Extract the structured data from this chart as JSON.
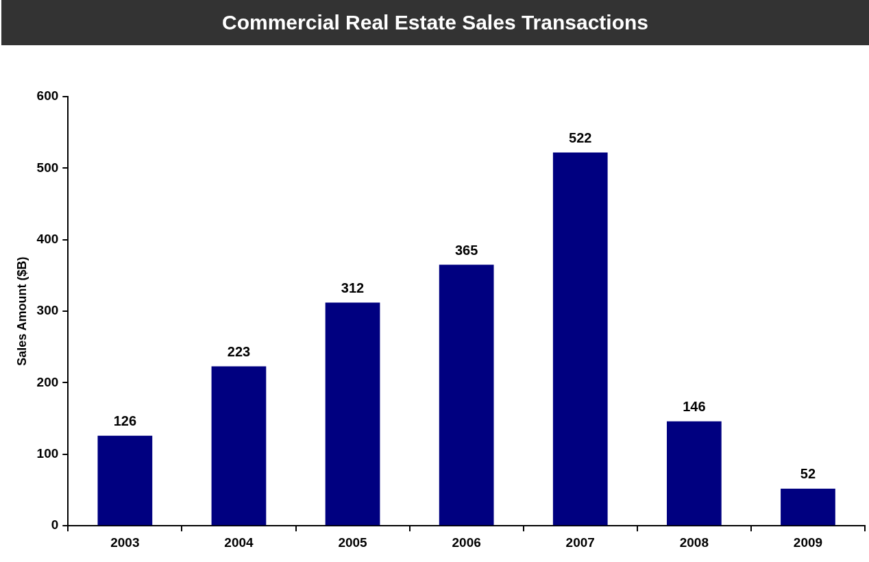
{
  "chart_data": {
    "type": "bar",
    "title": "Commercial Real Estate Sales Transactions",
    "ylabel": "Sales Amount ($B)",
    "categories": [
      "2003",
      "2004",
      "2005",
      "2006",
      "2007",
      "2008",
      "2009"
    ],
    "values": [
      126,
      223,
      312,
      365,
      522,
      146,
      52
    ],
    "color": "#000080",
    "ylim": [
      0,
      600
    ],
    "yticks": [
      0,
      100,
      200,
      300,
      400,
      500,
      600
    ],
    "grid": false,
    "legend": false,
    "data_labels": true
  }
}
